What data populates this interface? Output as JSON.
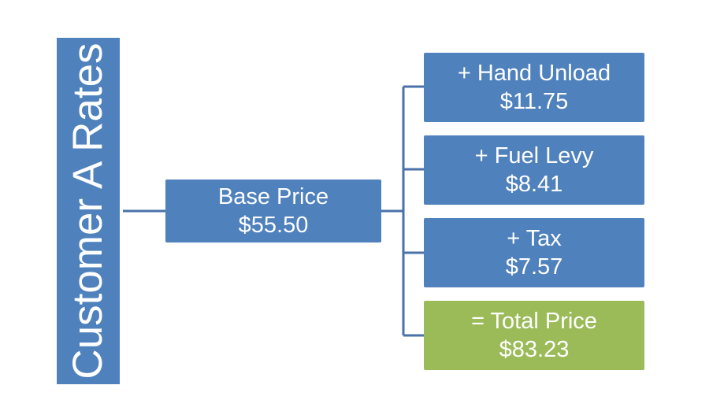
{
  "title": "Customer A Rates",
  "base": {
    "label": "Base Price",
    "value": "$55.50"
  },
  "items": [
    {
      "label": "+ Hand Unload",
      "value": "$11.75"
    },
    {
      "label": "+ Fuel Levy",
      "value": "$8.41"
    },
    {
      "label": "+ Tax",
      "value": "$7.57"
    }
  ],
  "total": {
    "label": "= Total Price",
    "value": "$83.23"
  },
  "colors": {
    "box_blue": "#4f81bd",
    "box_green": "#9bbb59",
    "connector": "#4a72a8",
    "text": "#ffffff"
  }
}
